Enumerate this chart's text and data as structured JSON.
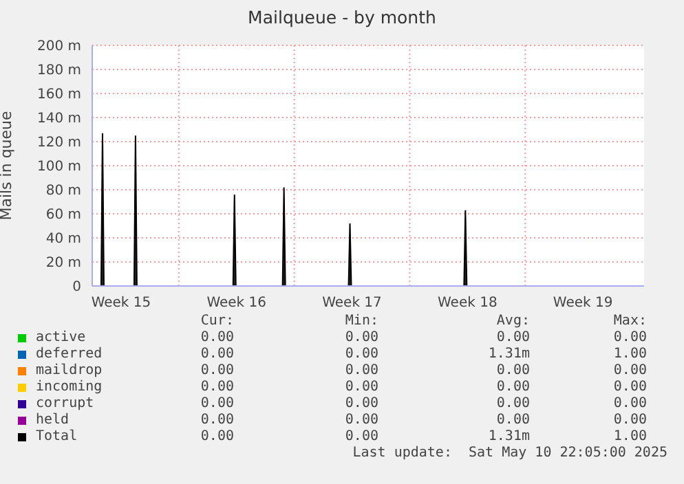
{
  "chart_data": {
    "type": "area",
    "title": "Mailqueue - by month",
    "ylabel": "Mails in queue",
    "xlim": [
      "2025-04-08T18:00",
      "2025-05-12T05:00"
    ],
    "xticks": [
      {
        "value": "2025-04-10T12:00",
        "label": "Week 15"
      },
      {
        "value": "2025-04-17T12:00",
        "label": "Week 16"
      },
      {
        "value": "2025-04-24T12:00",
        "label": "Week 17"
      },
      {
        "value": "2025-05-01T12:00",
        "label": "Week 18"
      },
      {
        "value": "2025-05-08T12:00",
        "label": "Week 19"
      }
    ],
    "ylim": [
      0,
      200
    ],
    "yticks": [
      0,
      {
        "value": 20,
        "label": "20 m"
      },
      {
        "value": 40,
        "label": "40 m"
      },
      {
        "value": 60,
        "label": "60 m"
      },
      {
        "value": 80,
        "label": "80 m"
      },
      {
        "value": 100,
        "label": "100 m"
      },
      {
        "value": 120,
        "label": "120 m"
      },
      {
        "value": 140,
        "label": "140 m"
      },
      {
        "value": 160,
        "label": "160 m"
      },
      {
        "value": 180,
        "label": "180 m"
      },
      {
        "value": 200,
        "label": "200 m"
      }
    ],
    "grid": "y",
    "legend": "bottom",
    "ref_lines": [
      {
        "axis": "x",
        "value": "2025-04-14T00:00",
        "color": "#ff9999",
        "line_style": "dotted"
      },
      {
        "axis": "x",
        "value": "2025-04-21T00:00",
        "color": "#ff9999",
        "line_style": "dotted"
      },
      {
        "axis": "x",
        "value": "2025-04-28T00:00",
        "color": "#ff9999",
        "line_style": "dotted"
      },
      {
        "axis": "x",
        "value": "2025-05-05T00:00",
        "color": "#ff9999",
        "line_style": "dotted"
      }
    ],
    "series": [
      {
        "name": "active",
        "color": "#00cc00"
      },
      {
        "name": "deferred",
        "color": "#0066b3"
      },
      {
        "name": "maildrop",
        "color": "#ff8000"
      },
      {
        "name": "incoming",
        "color": "#ffcc00"
      },
      {
        "name": "corrupt",
        "color": "#330099"
      },
      {
        "name": "held",
        "color": "#990099"
      },
      {
        "name": "Total",
        "color": "#000000",
        "x": [
          "2025-04-08T18:00",
          "2025-04-09T07:00",
          "2025-04-09T09:00",
          "2025-04-09T11:00",
          "2025-04-11T07:00",
          "2025-04-11T09:00",
          "2025-04-11T11:00",
          "2025-04-17T07:00",
          "2025-04-17T09:00",
          "2025-04-17T11:00",
          "2025-04-20T07:00",
          "2025-04-20T09:00",
          "2025-04-20T11:00",
          "2025-04-24T07:00",
          "2025-04-24T09:00",
          "2025-04-24T11:00",
          "2025-05-01T07:00",
          "2025-05-01T09:00",
          "2025-05-01T11:00",
          "2025-05-12T05:00"
        ],
        "values": [
          0,
          0,
          127,
          0,
          0,
          125,
          0,
          0,
          76,
          0,
          0,
          82,
          0,
          0,
          52,
          0,
          0,
          63,
          0,
          0
        ]
      }
    ],
    "annotations": [
      "Cur:",
      "Min:",
      "Avg:",
      "Max:",
      "0.00",
      "0.00",
      "0.00",
      "0.00",
      "0.00",
      "0.00",
      "1.31m",
      "1.00",
      "0.00",
      "0.00",
      "0.00",
      "0.00",
      "0.00",
      "0.00",
      "0.00",
      "0.00",
      "0.00",
      "0.00",
      "0.00",
      "0.00",
      "0.00",
      "0.00",
      "0.00",
      "0.00",
      "0.00",
      "0.00",
      "1.31m",
      "1.00",
      "Last update:  Sat May 10 22:05:00 2025"
    ]
  }
}
